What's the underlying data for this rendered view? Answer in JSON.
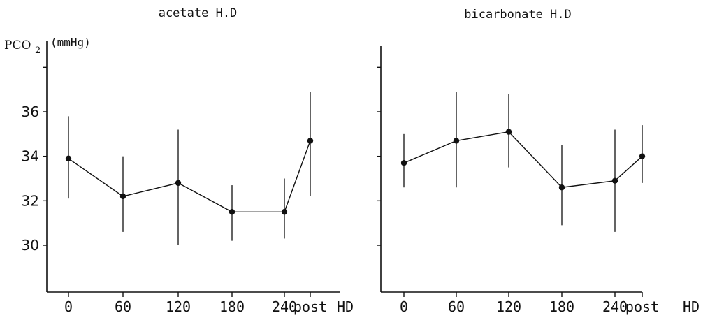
{
  "ylabel": {
    "main": "PCO",
    "subscript": "2",
    "units": "(mmHg)"
  },
  "x_suffix": "HD",
  "chart_data": [
    {
      "type": "line",
      "title": "acetate H.D",
      "categories": [
        "0",
        "60",
        "120",
        "180",
        "240",
        "post"
      ],
      "y_ticks": [
        30,
        32,
        34,
        36
      ],
      "ylim": [
        28,
        38.5
      ],
      "series": [
        {
          "values": [
            33.9,
            32.2,
            32.8,
            31.5,
            31.5,
            34.7
          ],
          "err_low": [
            32.1,
            30.6,
            30.0,
            30.2,
            30.3,
            32.2
          ],
          "err_high": [
            35.8,
            34.0,
            35.2,
            32.7,
            33.0,
            36.9
          ]
        }
      ],
      "grid": false
    },
    {
      "type": "line",
      "title": "bicarbonate H.D",
      "categories": [
        "0",
        "60",
        "120",
        "180",
        "240",
        "post"
      ],
      "y_ticks": [],
      "ylim": [
        28,
        38.5
      ],
      "series": [
        {
          "values": [
            33.7,
            34.7,
            35.1,
            32.6,
            32.9,
            34.0
          ],
          "err_low": [
            32.6,
            32.6,
            33.5,
            30.9,
            30.6,
            32.8
          ],
          "err_high": [
            35.0,
            36.9,
            36.8,
            34.5,
            35.2,
            35.4
          ]
        }
      ],
      "grid": false
    }
  ]
}
